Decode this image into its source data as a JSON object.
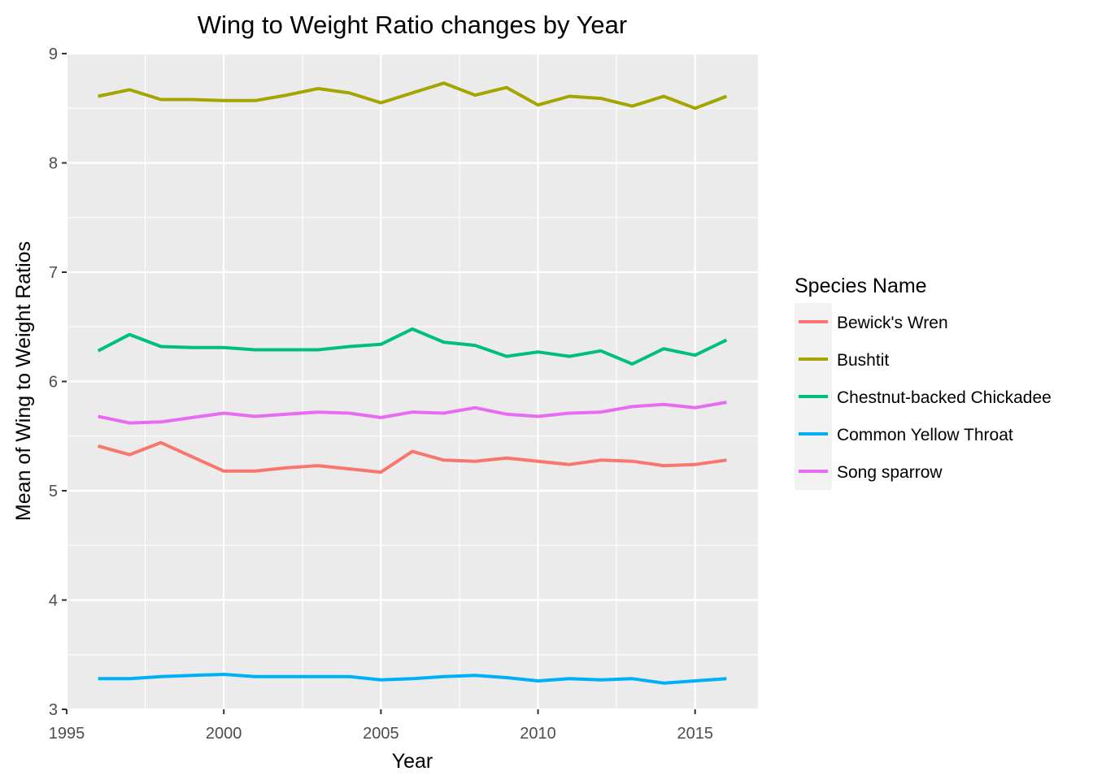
{
  "chart_data": {
    "type": "line",
    "title": "Wing to Weight Ratio changes by Year",
    "xlabel": "Year",
    "ylabel": "Mean of Wing to Weight Ratios",
    "xlim": [
      1995,
      2017
    ],
    "ylim": [
      3,
      9
    ],
    "x_ticks": [
      1995,
      2000,
      2005,
      2010,
      2015
    ],
    "y_ticks": [
      3,
      4,
      5,
      6,
      7,
      8,
      9
    ],
    "grid": true,
    "legend": {
      "title": "Species Name",
      "position": "right"
    },
    "x": [
      1996,
      1997,
      1998,
      1999,
      2000,
      2001,
      2002,
      2003,
      2004,
      2005,
      2006,
      2007,
      2008,
      2009,
      2010,
      2011,
      2012,
      2013,
      2014,
      2015,
      2016
    ],
    "series": [
      {
        "name": "Bewick's Wren",
        "color": "#F8766D",
        "values": [
          5.41,
          5.33,
          5.44,
          5.31,
          5.18,
          5.18,
          5.21,
          5.23,
          5.2,
          5.17,
          5.36,
          5.28,
          5.27,
          5.3,
          5.27,
          5.24,
          5.28,
          5.27,
          5.23,
          5.24,
          5.28
        ]
      },
      {
        "name": "Bushtit",
        "color": "#A3A500",
        "values": [
          8.61,
          8.67,
          8.58,
          8.58,
          8.57,
          8.57,
          8.62,
          8.68,
          8.64,
          8.55,
          8.64,
          8.73,
          8.62,
          8.69,
          8.53,
          8.61,
          8.59,
          8.52,
          8.61,
          8.5,
          8.61
        ]
      },
      {
        "name": "Chestnut-backed Chickadee",
        "color": "#00BF7D",
        "values": [
          6.28,
          6.43,
          6.32,
          6.31,
          6.31,
          6.29,
          6.29,
          6.29,
          6.32,
          6.34,
          6.48,
          6.36,
          6.33,
          6.23,
          6.27,
          6.23,
          6.28,
          6.16,
          6.3,
          6.24,
          6.38
        ]
      },
      {
        "name": "Common Yellow Throat",
        "color": "#00B0F6",
        "values": [
          3.28,
          3.28,
          3.3,
          3.31,
          3.32,
          3.3,
          3.3,
          3.3,
          3.3,
          3.27,
          3.28,
          3.3,
          3.31,
          3.29,
          3.26,
          3.28,
          3.27,
          3.28,
          3.24,
          3.26,
          3.28
        ]
      },
      {
        "name": "Song sparrow",
        "color": "#E76BF3",
        "values": [
          5.68,
          5.62,
          5.63,
          5.67,
          5.71,
          5.68,
          5.7,
          5.72,
          5.71,
          5.67,
          5.72,
          5.71,
          5.76,
          5.7,
          5.68,
          5.71,
          5.72,
          5.77,
          5.79,
          5.76,
          5.81
        ]
      }
    ]
  }
}
